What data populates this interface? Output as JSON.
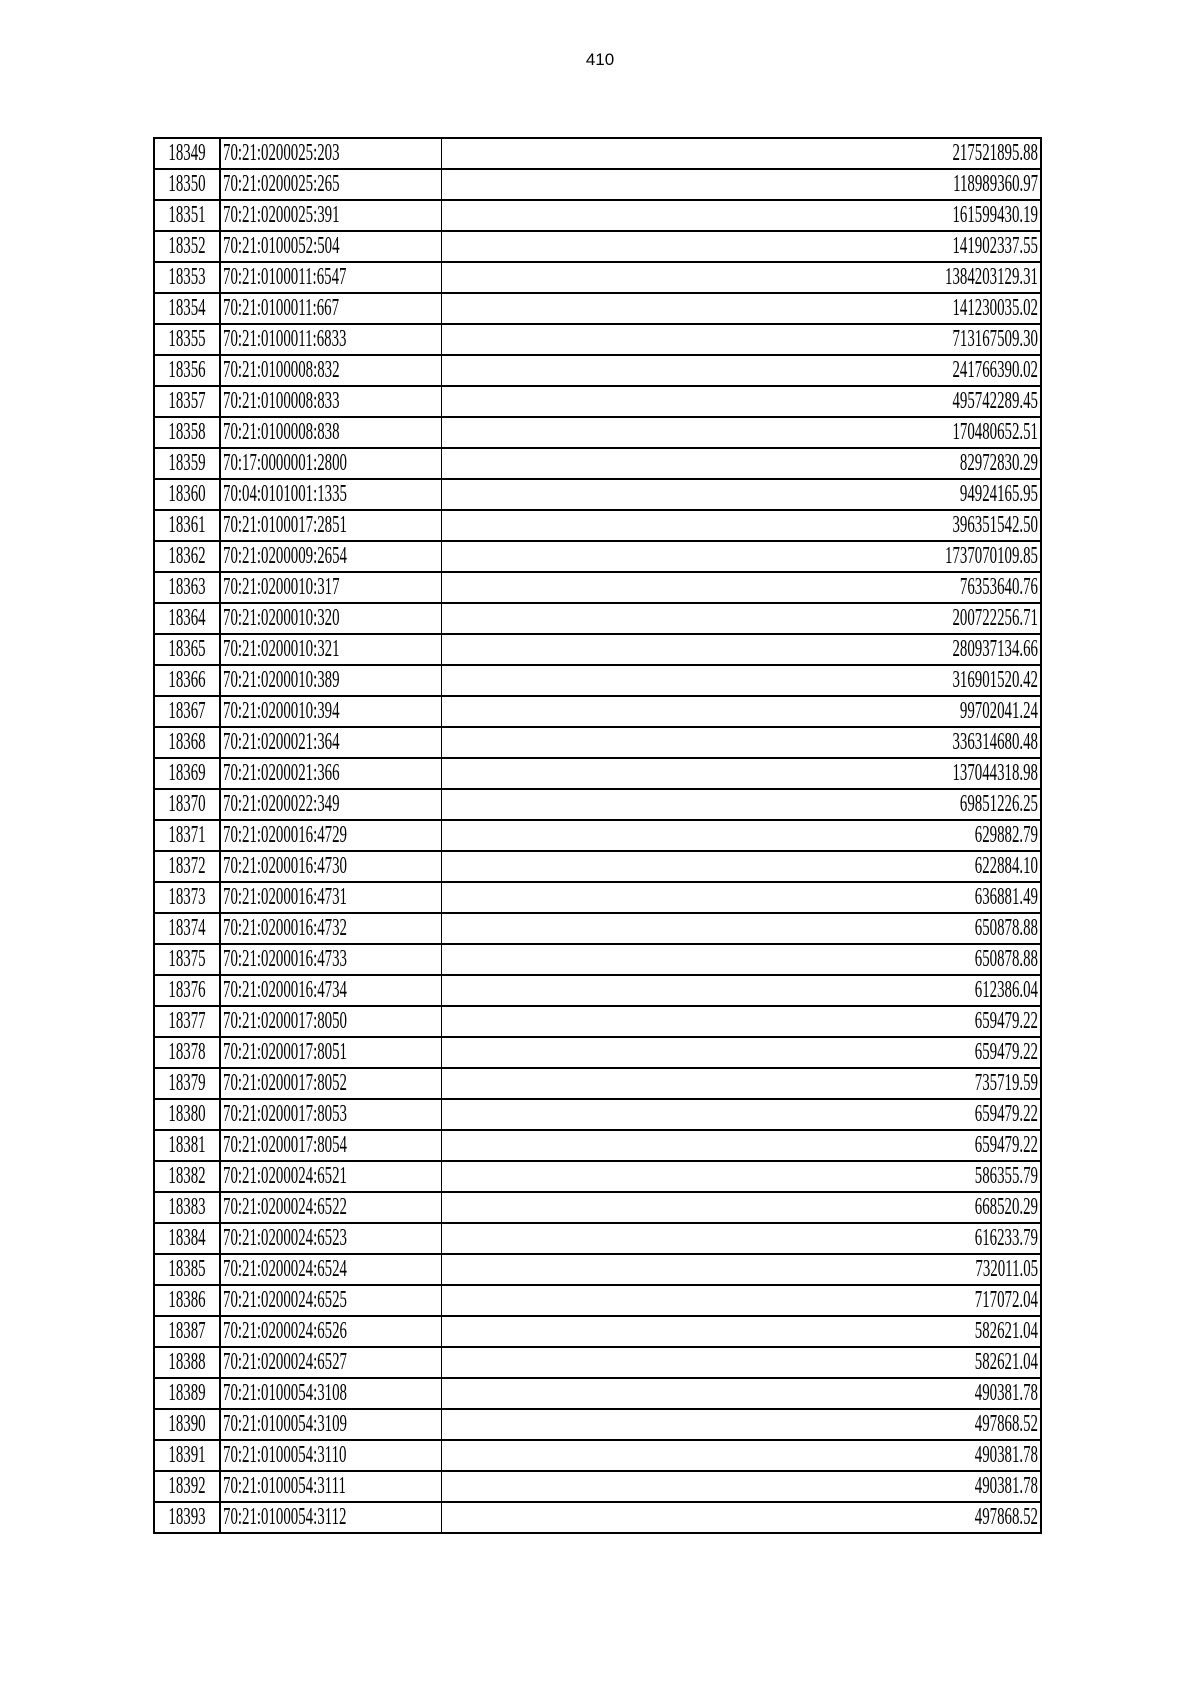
{
  "page_number": "410",
  "table": {
    "rows": [
      [
        "18349",
        "70:21:0200025:203",
        "217521895.88"
      ],
      [
        "18350",
        "70:21:0200025:265",
        "118989360.97"
      ],
      [
        "18351",
        "70:21:0200025:391",
        "161599430.19"
      ],
      [
        "18352",
        "70:21:0100052:504",
        "141902337.55"
      ],
      [
        "18353",
        "70:21:0100011:6547",
        "1384203129.31"
      ],
      [
        "18354",
        "70:21:0100011:667",
        "141230035.02"
      ],
      [
        "18355",
        "70:21:0100011:6833",
        "713167509.30"
      ],
      [
        "18356",
        "70:21:0100008:832",
        "241766390.02"
      ],
      [
        "18357",
        "70:21:0100008:833",
        "495742289.45"
      ],
      [
        "18358",
        "70:21:0100008:838",
        "170480652.51"
      ],
      [
        "18359",
        "70:17:0000001:2800",
        "82972830.29"
      ],
      [
        "18360",
        "70:04:0101001:1335",
        "94924165.95"
      ],
      [
        "18361",
        "70:21:0100017:2851",
        "396351542.50"
      ],
      [
        "18362",
        "70:21:0200009:2654",
        "1737070109.85"
      ],
      [
        "18363",
        "70:21:0200010:317",
        "76353640.76"
      ],
      [
        "18364",
        "70:21:0200010:320",
        "200722256.71"
      ],
      [
        "18365",
        "70:21:0200010:321",
        "280937134.66"
      ],
      [
        "18366",
        "70:21:0200010:389",
        "316901520.42"
      ],
      [
        "18367",
        "70:21:0200010:394",
        "99702041.24"
      ],
      [
        "18368",
        "70:21:0200021:364",
        "336314680.48"
      ],
      [
        "18369",
        "70:21:0200021:366",
        "137044318.98"
      ],
      [
        "18370",
        "70:21:0200022:349",
        "69851226.25"
      ],
      [
        "18371",
        "70:21:0200016:4729",
        "629882.79"
      ],
      [
        "18372",
        "70:21:0200016:4730",
        "622884.10"
      ],
      [
        "18373",
        "70:21:0200016:4731",
        "636881.49"
      ],
      [
        "18374",
        "70:21:0200016:4732",
        "650878.88"
      ],
      [
        "18375",
        "70:21:0200016:4733",
        "650878.88"
      ],
      [
        "18376",
        "70:21:0200016:4734",
        "612386.04"
      ],
      [
        "18377",
        "70:21:0200017:8050",
        "659479.22"
      ],
      [
        "18378",
        "70:21:0200017:8051",
        "659479.22"
      ],
      [
        "18379",
        "70:21:0200017:8052",
        "735719.59"
      ],
      [
        "18380",
        "70:21:0200017:8053",
        "659479.22"
      ],
      [
        "18381",
        "70:21:0200017:8054",
        "659479.22"
      ],
      [
        "18382",
        "70:21:0200024:6521",
        "586355.79"
      ],
      [
        "18383",
        "70:21:0200024:6522",
        "668520.29"
      ],
      [
        "18384",
        "70:21:0200024:6523",
        "616233.79"
      ],
      [
        "18385",
        "70:21:0200024:6524",
        "732011.05"
      ],
      [
        "18386",
        "70:21:0200024:6525",
        "717072.04"
      ],
      [
        "18387",
        "70:21:0200024:6526",
        "582621.04"
      ],
      [
        "18388",
        "70:21:0200024:6527",
        "582621.04"
      ],
      [
        "18389",
        "70:21:0100054:3108",
        "490381.78"
      ],
      [
        "18390",
        "70:21:0100054:3109",
        "497868.52"
      ],
      [
        "18391",
        "70:21:0100054:3110",
        "490381.78"
      ],
      [
        "18392",
        "70:21:0100054:3111",
        "490381.78"
      ],
      [
        "18393",
        "70:21:0100054:3112",
        "497868.52"
      ]
    ]
  }
}
